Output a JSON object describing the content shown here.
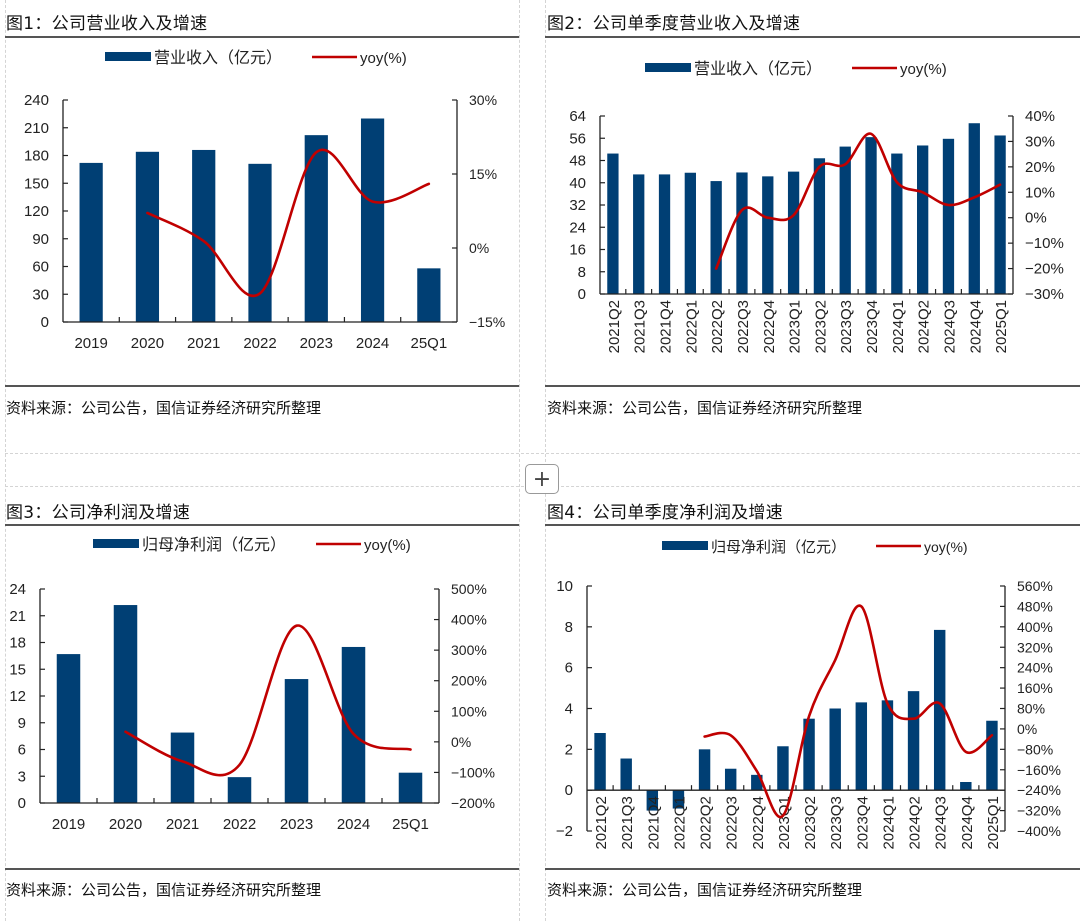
{
  "colors": {
    "bar": "#003f74",
    "line": "#c00000",
    "axis": "#222222"
  },
  "panels": [
    {
      "title": "图1：公司营业收入及增速",
      "source": "资料来源：公司公告，国信证券经济研究所整理"
    },
    {
      "title": "图2：公司单季度营业收入及增速",
      "source": "资料来源：公司公告，国信证券经济研究所整理"
    },
    {
      "title": "图3：公司净利润及增速",
      "source": "资料来源：公司公告，国信证券经济研究所整理"
    },
    {
      "title": "图4：公司单季度净利润及增速",
      "source": "资料来源：公司公告，国信证券经济研究所整理"
    }
  ],
  "add_button": {
    "label": "+",
    "icon": "plus-icon"
  },
  "chart_data": [
    {
      "type": "bar",
      "title": "图1：公司营业收入及增速",
      "categories": [
        "2019",
        "2020",
        "2021",
        "2022",
        "2023",
        "2024",
        "25Q1"
      ],
      "series": [
        {
          "name": "营业收入(亿元)",
          "kind": "bar",
          "axis": "left",
          "values": [
            172,
            184,
            186,
            171,
            202,
            220,
            58
          ]
        },
        {
          "name": "yoy(%)",
          "kind": "line",
          "axis": "right",
          "values": [
            null,
            7.1,
            1.4,
            -9.2,
            19.4,
            9.4,
            13.0
          ]
        }
      ],
      "left_axis": {
        "min": 0,
        "max": 240,
        "ticks": [
          0,
          30,
          60,
          90,
          120,
          150,
          180,
          210,
          240
        ],
        "labels": [
          "0",
          "30",
          "60",
          "90",
          "120",
          "150",
          "180",
          "210",
          "240"
        ]
      },
      "right_axis": {
        "min": -15,
        "max": 30,
        "ticks": [
          -15,
          0,
          15,
          30
        ],
        "labels": [
          "-15%",
          "0%",
          "15%",
          "30%"
        ]
      },
      "x_label_rotation": "horizontal",
      "legend": {
        "position": "top",
        "items": [
          "营业收入(亿元)",
          "yoy(%)"
        ]
      },
      "grid": false
    },
    {
      "type": "bar",
      "title": "图2：公司单季度营业收入及增速",
      "categories": [
        "2021Q2",
        "2021Q3",
        "2021Q4",
        "2022Q1",
        "2022Q2",
        "2022Q3",
        "2022Q4",
        "2023Q1",
        "2023Q2",
        "2023Q3",
        "2023Q4",
        "2024Q1",
        "2024Q2",
        "2024Q3",
        "2024Q4",
        "2025Q1"
      ],
      "series": [
        {
          "name": "营业收入(亿元)",
          "kind": "bar",
          "axis": "left",
          "values": [
            50.5,
            43.0,
            43.0,
            43.6,
            40.6,
            43.7,
            42.3,
            44.0,
            48.8,
            53.0,
            56.4,
            50.5,
            53.4,
            55.8,
            61.4,
            57.0
          ]
        },
        {
          "name": "yoy(%)",
          "kind": "line",
          "axis": "right",
          "values": [
            null,
            null,
            null,
            null,
            -20,
            3,
            0,
            1,
            20,
            21,
            33,
            14,
            10,
            5,
            8,
            13
          ]
        }
      ],
      "left_axis": {
        "min": 0,
        "max": 64,
        "ticks": [
          0,
          8,
          16,
          24,
          32,
          40,
          48,
          56,
          64
        ],
        "labels": [
          "0",
          "8",
          "16",
          "24",
          "32",
          "40",
          "48",
          "56",
          "64"
        ]
      },
      "right_axis": {
        "min": -30,
        "max": 40,
        "ticks": [
          -30,
          -20,
          -10,
          0,
          10,
          20,
          30,
          40
        ],
        "labels": [
          "-30%",
          "-20%",
          "-10%",
          "0%",
          "10%",
          "20%",
          "30%",
          "40%"
        ]
      },
      "x_label_rotation": "vertical",
      "legend": {
        "position": "top",
        "items": [
          "营业收入(亿元)",
          "yoy(%)"
        ]
      },
      "grid": false
    },
    {
      "type": "bar",
      "title": "图3：公司净利润及增速",
      "categories": [
        "2019",
        "2020",
        "2021",
        "2022",
        "2023",
        "2024",
        "25Q1"
      ],
      "series": [
        {
          "name": "归母净利润(亿元)",
          "kind": "bar",
          "axis": "left",
          "values": [
            16.7,
            22.2,
            7.9,
            2.9,
            13.9,
            17.5,
            3.4
          ]
        },
        {
          "name": "yoy(%)",
          "kind": "line",
          "axis": "right",
          "values": [
            null,
            33,
            -64,
            -75,
            380,
            26,
            -25
          ]
        }
      ],
      "left_axis": {
        "min": 0,
        "max": 24,
        "ticks": [
          0,
          3,
          6,
          9,
          12,
          15,
          18,
          21,
          24
        ],
        "labels": [
          "0",
          "3",
          "6",
          "9",
          "12",
          "15",
          "18",
          "21",
          "24"
        ]
      },
      "right_axis": {
        "min": -200,
        "max": 500,
        "ticks": [
          -200,
          -100,
          0,
          100,
          200,
          300,
          400,
          500
        ],
        "labels": [
          "-200%",
          "-100%",
          "0%",
          "100%",
          "200%",
          "300%",
          "400%",
          "500%"
        ]
      },
      "x_label_rotation": "horizontal",
      "legend": {
        "position": "top",
        "items": [
          "归母净利润(亿元)",
          "yoy(%)"
        ]
      },
      "grid": false
    },
    {
      "type": "bar",
      "title": "图4：公司单季度净利润及增速",
      "categories": [
        "2021Q2",
        "2021Q3",
        "2021Q4",
        "2022Q1",
        "2022Q2",
        "2022Q3",
        "2022Q4",
        "2023Q1",
        "2023Q2",
        "2023Q3",
        "2023Q4",
        "2024Q1",
        "2024Q2",
        "2024Q3",
        "2024Q4",
        "2025Q1"
      ],
      "series": [
        {
          "name": "归母净利润(亿元)",
          "kind": "bar",
          "axis": "left",
          "values": [
            2.8,
            1.55,
            -1.0,
            -0.9,
            2.0,
            1.05,
            0.75,
            2.15,
            3.5,
            4.0,
            4.3,
            4.4,
            4.85,
            7.85,
            0.4,
            3.4
          ]
        },
        {
          "name": "yoy(%)",
          "kind": "line",
          "axis": "right",
          "values": [
            null,
            null,
            null,
            null,
            -30,
            -25,
            -165,
            -340,
            50,
            270,
            480,
            100,
            40,
            100,
            -90,
            -25
          ]
        }
      ],
      "left_axis": {
        "min": -2,
        "max": 10,
        "ticks": [
          -2,
          0,
          2,
          4,
          6,
          8,
          10
        ],
        "labels": [
          "-2",
          "0",
          "2",
          "4",
          "6",
          "8",
          "10"
        ]
      },
      "right_axis": {
        "min": -400,
        "max": 560,
        "ticks": [
          -400,
          -320,
          -240,
          -160,
          -80,
          0,
          80,
          160,
          240,
          320,
          400,
          480,
          560
        ],
        "labels": [
          "-400%",
          "-320%",
          "-240%",
          "-160%",
          "-80%",
          "0%",
          "80%",
          "160%",
          "240%",
          "320%",
          "400%",
          "480%",
          "560%"
        ]
      },
      "x_label_rotation": "vertical",
      "legend": {
        "position": "top",
        "items": [
          "归母净利润(亿元)",
          "yoy(%)"
        ]
      },
      "grid": false
    }
  ]
}
